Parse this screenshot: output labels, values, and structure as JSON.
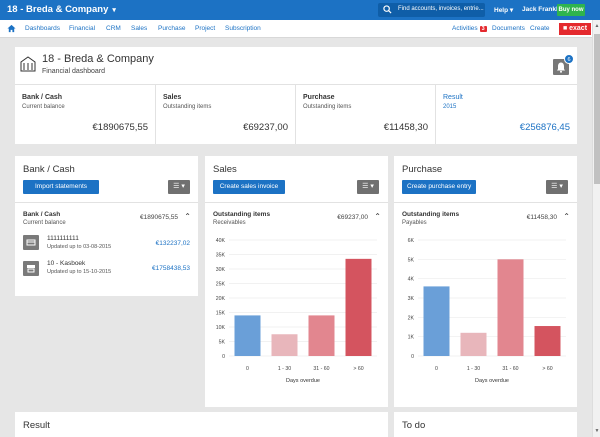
{
  "topbar": {
    "company": "18 - Breda & Company",
    "search_placeholder": "Find accounts, invoices, entrie...",
    "help": "Help",
    "user": "Jack Franklin",
    "buy_now": "Buy now"
  },
  "nav": {
    "items": [
      "Dashboards",
      "Financial",
      "CRM",
      "Sales",
      "Purchase",
      "Project",
      "Subscription"
    ],
    "activities": "Activities",
    "activities_count": "3",
    "documents": "Documents",
    "create": "Create",
    "logo": "■ exact"
  },
  "header": {
    "title": "18 - Breda & Company",
    "subtitle": "Financial dashboard",
    "notification_count": "6"
  },
  "kpis": [
    {
      "title": "Bank / Cash",
      "sub": "Current balance",
      "value": "€1890675,55"
    },
    {
      "title": "Sales",
      "sub": "Outstanding items",
      "value": "€69237,00"
    },
    {
      "title": "Purchase",
      "sub": "Outstanding items",
      "value": "€11458,30"
    },
    {
      "title": "Result",
      "sub": "2015",
      "value": "€256876,45"
    }
  ],
  "bank": {
    "title": "Bank / Cash",
    "button": "Import statements",
    "menu": "☰ ▾",
    "section_title": "Bank / Cash",
    "section_sub": "Current balance",
    "section_value": "€1890675,55",
    "accounts": [
      {
        "name": "1111111111",
        "updated": "Updated up to 03-08-2015",
        "value": "€132237,02"
      },
      {
        "name": "10 - Kasboek",
        "updated": "Updated up to 15-10-2015",
        "value": "€1758438,53"
      }
    ]
  },
  "sales": {
    "title": "Sales",
    "button": "Create sales invoice",
    "menu": "☰ ▾",
    "section_title": "Outstanding items",
    "section_sub": "Receivables",
    "section_value": "€69237,00"
  },
  "purchase": {
    "title": "Purchase",
    "button": "Create purchase entry",
    "menu": "☰ ▾",
    "section_title": "Outstanding items",
    "section_sub": "Payables",
    "section_value": "€11458,30"
  },
  "bottom": {
    "result": "Result",
    "todo": "To do"
  },
  "colors": {
    "bar_blue": "#6a9fd8",
    "bar_pink_light": "#e8b6bb",
    "bar_pink": "#e2868f",
    "bar_red": "#d4545f",
    "accent": "#1c72c4"
  },
  "chart_data": [
    {
      "type": "bar",
      "categories": [
        "0",
        "1 - 30",
        "31 - 60",
        "> 60"
      ],
      "values": [
        14000,
        7500,
        14000,
        33500
      ],
      "xlabel": "Days overdue",
      "yticks": [
        "0",
        "5K",
        "10K",
        "15K",
        "20K",
        "25K",
        "30K",
        "35K",
        "40K"
      ],
      "ylim": [
        0,
        40000
      ]
    },
    {
      "type": "bar",
      "categories": [
        "0",
        "1 - 30",
        "31 - 60",
        "> 60"
      ],
      "values": [
        3600,
        1200,
        5000,
        1550
      ],
      "xlabel": "Days overdue",
      "yticks": [
        "0",
        "1K",
        "2K",
        "3K",
        "4K",
        "5K",
        "6K"
      ],
      "ylim": [
        0,
        6000
      ]
    }
  ]
}
